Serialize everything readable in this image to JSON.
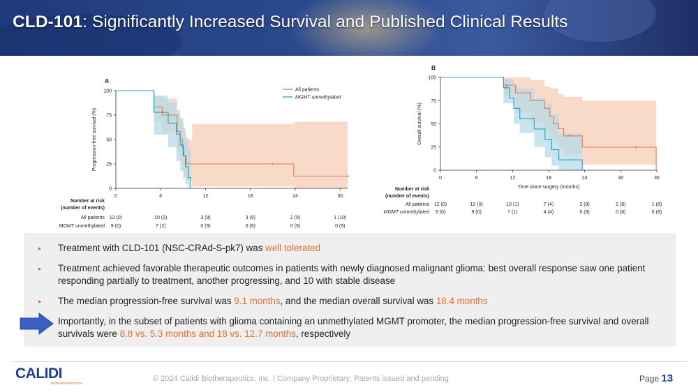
{
  "title": {
    "main": "CLD-101",
    "rest": ": Significantly Increased Survival and Published Clinical Results"
  },
  "colors": {
    "all_patients": "#e0785a",
    "mgmt_unmethylated": "#2d9cbf",
    "all_band": "#f6c9b0",
    "mgmt_band": "#b6dbe5",
    "accent": "#e07030",
    "brand": "#1c3f93"
  },
  "chart_data": [
    {
      "type": "line",
      "panel_label": "A",
      "ylabel": "Progression-free survival (%)",
      "xlabel": "",
      "xlim": [
        0,
        31
      ],
      "ylim": [
        0,
        100
      ],
      "xticks": [
        0,
        6,
        12,
        18,
        24,
        30
      ],
      "yticks": [
        0,
        25,
        50,
        75,
        100
      ],
      "legend": [
        "All patients",
        "MGMT unmethylated"
      ],
      "series": [
        {
          "name": "All patients",
          "steps": [
            [
              0,
              100
            ],
            [
              5.1,
              100
            ],
            [
              5.1,
              83.3
            ],
            [
              6.2,
              83.3
            ],
            [
              6.2,
              75
            ],
            [
              8.2,
              75
            ],
            [
              8.2,
              58.3
            ],
            [
              8.6,
              58.3
            ],
            [
              8.6,
              50
            ],
            [
              8.9,
              50
            ],
            [
              8.9,
              41.7
            ],
            [
              9.1,
              41.7
            ],
            [
              9.1,
              33.3
            ],
            [
              9.4,
              33.3
            ],
            [
              9.4,
              25
            ],
            [
              23.8,
              25
            ],
            [
              23.8,
              12.5
            ],
            [
              31,
              12.5
            ]
          ],
          "censored": [
            [
              21,
              25
            ],
            [
              31,
              12.5
            ]
          ],
          "ci": [
            [
              0,
              100,
              100
            ],
            [
              5.1,
              68,
              95
            ],
            [
              6.2,
              58,
              92
            ],
            [
              8.2,
              38,
              77
            ],
            [
              8.6,
              28,
              72
            ],
            [
              8.9,
              18,
              66
            ],
            [
              9.1,
              12,
              58
            ],
            [
              9.4,
              8,
              50
            ],
            [
              10.2,
              2,
              66
            ],
            [
              23.8,
              2,
              66
            ],
            [
              23.8,
              0,
              68
            ],
            [
              31,
              0,
              68
            ]
          ]
        },
        {
          "name": "MGMT unmethylated",
          "steps": [
            [
              0,
              100
            ],
            [
              5.1,
              100
            ],
            [
              5.1,
              77.8
            ],
            [
              7,
              77.8
            ],
            [
              7,
              66.7
            ],
            [
              8.1,
              66.7
            ],
            [
              8.1,
              55.6
            ],
            [
              8.6,
              55.6
            ],
            [
              8.6,
              44.4
            ],
            [
              9,
              44.4
            ],
            [
              9,
              33.3
            ],
            [
              9.3,
              33.3
            ],
            [
              9.3,
              22.2
            ],
            [
              9.7,
              22.2
            ],
            [
              9.7,
              11.1
            ],
            [
              10,
              11.1
            ],
            [
              10,
              0
            ]
          ],
          "censored": [],
          "ci": [
            [
              0,
              100,
              100
            ],
            [
              5.1,
              55,
              95
            ],
            [
              7,
              42,
              88
            ],
            [
              8.1,
              28,
              80
            ],
            [
              8.6,
              18,
              72
            ],
            [
              9,
              10,
              62
            ],
            [
              9.3,
              4,
              52
            ],
            [
              9.7,
              0,
              40
            ],
            [
              10,
              0,
              40
            ]
          ]
        }
      ],
      "risk_table": {
        "header": [
          "Number at risk",
          "(number of events)"
        ],
        "rows": [
          {
            "label": "All patients",
            "values": [
              "12 (0)",
              "10 (2)",
              "3 (9)",
              "3 (9)",
              "2 (9)",
              "1 (10)"
            ]
          },
          {
            "label": "MGMT unmethylated",
            "values": [
              "9 (0)",
              "7 (2)",
              "0 (9)",
              "0 (9)",
              "0 (9)",
              "0 (9)"
            ]
          }
        ]
      }
    },
    {
      "type": "line",
      "panel_label": "B",
      "ylabel": "Overall survival (%)",
      "xlabel": "Time since surgery (months)",
      "xlim": [
        0,
        36
      ],
      "ylim": [
        0,
        100
      ],
      "xticks": [
        0,
        6,
        12,
        18,
        24,
        30,
        36
      ],
      "yticks": [
        0,
        25,
        50,
        75,
        100
      ],
      "series": [
        {
          "name": "All patients",
          "steps": [
            [
              0,
              100
            ],
            [
              10.5,
              100
            ],
            [
              10.5,
              91.7
            ],
            [
              12.5,
              91.7
            ],
            [
              12.5,
              83.3
            ],
            [
              15,
              83.3
            ],
            [
              15,
              75
            ],
            [
              17.3,
              75
            ],
            [
              17.3,
              66.7
            ],
            [
              18.2,
              66.7
            ],
            [
              18.2,
              58.3
            ],
            [
              18.8,
              58.3
            ],
            [
              18.8,
              50
            ],
            [
              19.6,
              50
            ],
            [
              19.6,
              45
            ],
            [
              20.5,
              45
            ],
            [
              20.5,
              37
            ],
            [
              23.6,
              37
            ],
            [
              23.6,
              24.8
            ],
            [
              35.9,
              24.8
            ],
            [
              35.9,
              0
            ]
          ],
          "censored": [
            [
              11,
              91.7
            ],
            [
              21.5,
              37
            ],
            [
              32.5,
              24.8
            ]
          ],
          "ci": [
            [
              0,
              100,
              100
            ],
            [
              10.5,
              80,
              100
            ],
            [
              12.5,
              62,
              100
            ],
            [
              15,
              52,
              97
            ],
            [
              17.3,
              42,
              90
            ],
            [
              18.2,
              32,
              88
            ],
            [
              19.6,
              26,
              82
            ],
            [
              20.5,
              17,
              79
            ],
            [
              23.6,
              6,
              75
            ],
            [
              35.9,
              6,
              75
            ]
          ]
        },
        {
          "name": "MGMT unmethylated",
          "steps": [
            [
              0,
              100
            ],
            [
              10.5,
              100
            ],
            [
              10.5,
              88.9
            ],
            [
              11.5,
              88.9
            ],
            [
              11.5,
              77.8
            ],
            [
              12.2,
              77.8
            ],
            [
              12.2,
              66.7
            ],
            [
              13.2,
              66.7
            ],
            [
              13.2,
              55.6
            ],
            [
              15.6,
              55.6
            ],
            [
              15.6,
              44.4
            ],
            [
              17.4,
              44.4
            ],
            [
              17.4,
              33.3
            ],
            [
              18.5,
              33.3
            ],
            [
              18.5,
              22.2
            ],
            [
              19.7,
              22.2
            ],
            [
              19.7,
              11.1
            ],
            [
              23.6,
              11.1
            ],
            [
              23.6,
              0
            ]
          ],
          "censored": [
            [
              10.9,
              88.9
            ]
          ],
          "ci": [
            [
              0,
              100,
              100
            ],
            [
              10.5,
              72,
              98
            ],
            [
              12.2,
              50,
              90
            ],
            [
              13.2,
              40,
              88
            ],
            [
              15.6,
              25,
              78
            ],
            [
              17.4,
              14,
              72
            ],
            [
              18.5,
              5,
              60
            ],
            [
              19.7,
              0,
              40
            ],
            [
              23.6,
              0,
              40
            ]
          ]
        }
      ],
      "risk_table": {
        "header": [
          "Number at risk",
          "(number of events)"
        ],
        "rows": [
          {
            "label": "All patients",
            "values": [
              "12 (0)",
              "12 (0)",
              "10 (1)",
              "7 (4)",
              "2 (8)",
              "2 (8)",
              "1 (8)"
            ]
          },
          {
            "label": "MGMT unmethylated",
            "values": [
              "9 (0)",
              "9 (0)",
              "7 (1)",
              "4 (4)",
              "0 (8)",
              "0 (8)",
              "0 (8)"
            ]
          }
        ]
      }
    }
  ],
  "bullets": [
    [
      {
        "t": "Treatment with CLD-101 (NSC-CRAd-S-pk7) was "
      },
      {
        "t": "well tolerated",
        "hl": true
      }
    ],
    [
      {
        "t": "Treatment achieved favorable therapeutic outcomes in patients with newly diagnosed malignant glioma: best overall response saw one patient responding partially to treatment, another progressing, and 10 with stable disease"
      }
    ],
    [
      {
        "t": "The median progression-free survival was "
      },
      {
        "t": "9.1 months",
        "hl": true
      },
      {
        "t": ", and the median overall survival was "
      },
      {
        "t": "18.4 months",
        "hl": true
      }
    ],
    [
      {
        "t": "Importantly, in the subset of patients with glioma containing an unmethylated MGMT promoter, the median progression-free survival and overall survivals were "
      },
      {
        "t": "8.8 vs. 5.3 months and 18 vs. 12.7 months",
        "hl": true
      },
      {
        "t": ", respectively"
      }
    ]
  ],
  "footer": {
    "logo": "CALIDI",
    "logo_sub": "BIOTHERAPEUTICS",
    "copyright": "© 2024 Calidi Biotherapeutics, Inc. I  Company Proprietary; Patents issued and pending",
    "page_label": "Page",
    "page_number": "13"
  }
}
